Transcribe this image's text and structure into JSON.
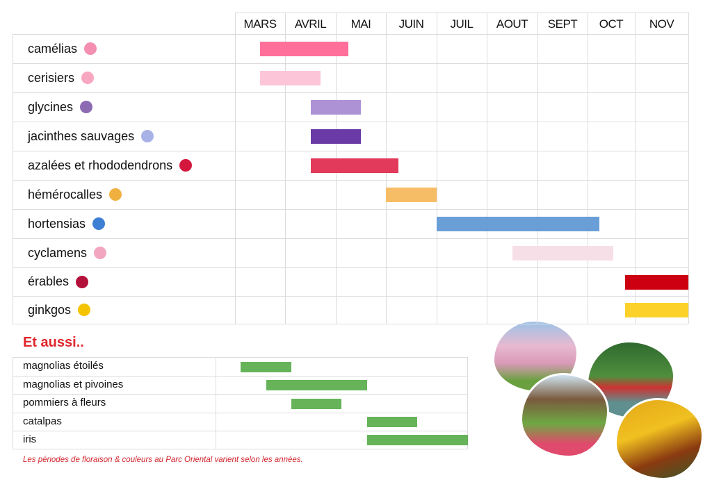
{
  "chart_data": {
    "type": "gantt",
    "months": [
      "MARS",
      "AVRIL",
      "MAI",
      "JUIN",
      "JUIL",
      "AOUT",
      "SEPT",
      "OCT",
      "NOV"
    ],
    "x_unit": "month number (3 = start of MARS)",
    "xlim": [
      3,
      12
    ],
    "series": [
      {
        "name": "camélias",
        "start": 3.5,
        "end": 5.25,
        "color": "#ff6f9a",
        "icon": "camellia-icon",
        "icon_color": "#f48fb1"
      },
      {
        "name": "cerisiers",
        "start": 3.5,
        "end": 4.7,
        "color": "#fcc6d8",
        "icon": "cherry-blossom-icon",
        "icon_color": "#f7a8c0"
      },
      {
        "name": "glycines",
        "start": 4.5,
        "end": 5.5,
        "color": "#ae92d6",
        "icon": "wisteria-icon",
        "icon_color": "#8c6bb3"
      },
      {
        "name": "jacinthes sauvages",
        "start": 4.5,
        "end": 5.5,
        "color": "#6a3aa6",
        "icon": "bluebell-icon",
        "icon_color": "#a9b2e6"
      },
      {
        "name": "azalées et rhododendrons",
        "start": 4.5,
        "end": 6.25,
        "color": "#e23a5a",
        "icon": "azalea-icon",
        "icon_color": "#d3173d"
      },
      {
        "name": "hémérocalles",
        "start": 6,
        "end": 7,
        "color": "#f7bd66",
        "icon": "daylily-icon",
        "icon_color": "#f0b040"
      },
      {
        "name": "hortensias",
        "start": 7,
        "end": 10.25,
        "color": "#6a9ed6",
        "icon": "hydrangea-icon",
        "icon_color": "#3d7fd4"
      },
      {
        "name": "cyclamens",
        "start": 8.5,
        "end": 10.55,
        "color": "#f7dfe7",
        "icon": "cyclamen-icon",
        "icon_color": "#f2a6c0"
      },
      {
        "name": "érables",
        "start": 10.8,
        "end": 12,
        "color": "#cc0010",
        "icon": "maple-leaf-icon",
        "icon_color": "#b3103a"
      },
      {
        "name": "ginkgos",
        "start": 10.8,
        "end": 12,
        "color": "#fcd22a",
        "icon": "ginkgo-leaf-icon",
        "icon_color": "#f5c400"
      }
    ]
  },
  "also": {
    "title": "Et aussi..",
    "color": "#66b35a",
    "items": [
      {
        "name": "magnolias étoilés",
        "start": 3.5,
        "end": 4.5
      },
      {
        "name": "magnolias et pivoines",
        "start": 4,
        "end": 6
      },
      {
        "name": "pommiers à fleurs",
        "start": 4.5,
        "end": 5.5
      },
      {
        "name": "catalpas",
        "start": 6,
        "end": 7
      },
      {
        "name": "iris",
        "start": 6,
        "end": 8
      }
    ]
  },
  "footnote": "Les périodes de floraison & couleurs au Parc Oriental varient selon les années.",
  "photos": [
    "cherry-tree-photo",
    "garden-pond-photo",
    "tea-house-photo",
    "autumn-maple-photo"
  ]
}
